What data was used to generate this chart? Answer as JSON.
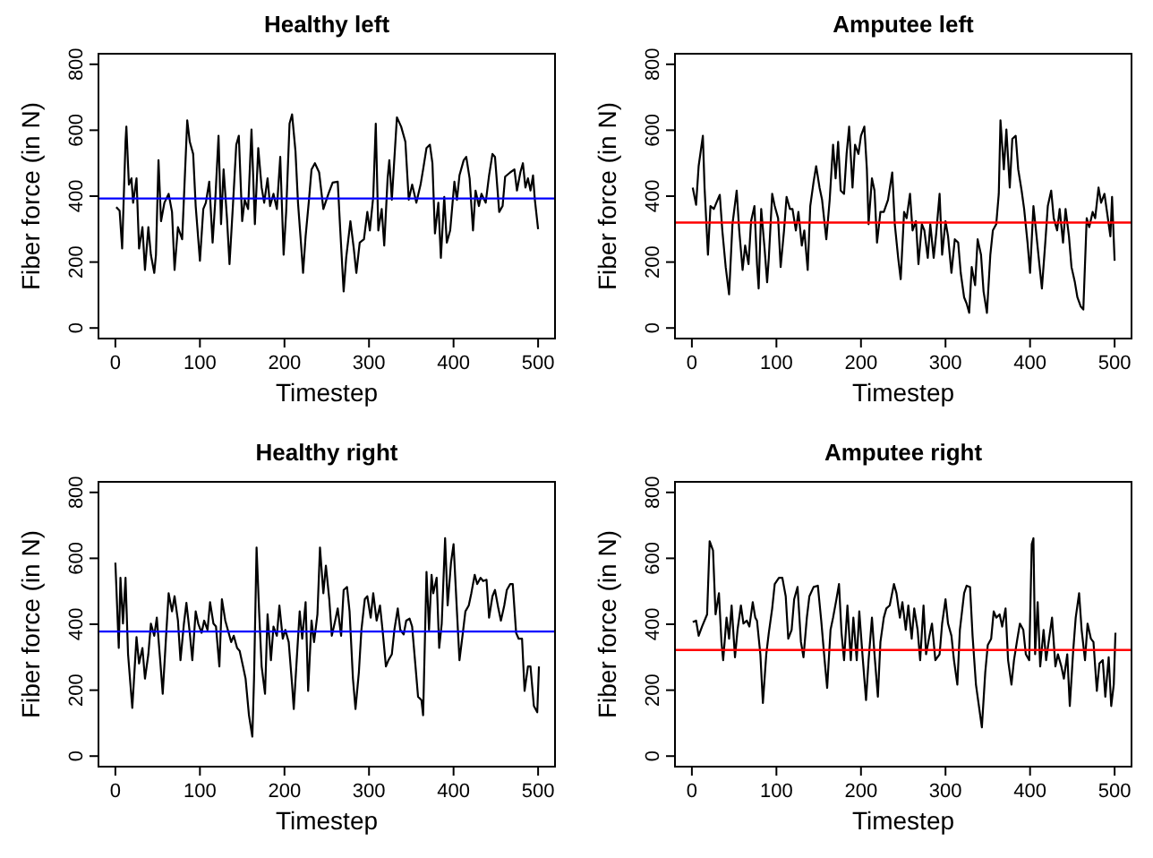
{
  "chart_data": [
    {
      "type": "line",
      "title": "Healthy left",
      "xlabel": "Timestep",
      "ylabel": "Fiber force (in N)",
      "xlim": [
        -20,
        520
      ],
      "ylim": [
        -32,
        832
      ],
      "xticks": [
        0,
        100,
        200,
        300,
        400,
        500
      ],
      "yticks": [
        0,
        200,
        400,
        600,
        800
      ],
      "x": [
        1,
        5,
        8,
        12,
        13,
        16,
        19,
        21,
        25,
        28,
        32,
        35,
        39,
        42,
        46,
        48,
        51,
        54,
        58,
        63,
        67,
        70,
        74,
        79,
        85,
        88,
        92,
        95,
        100,
        104,
        107,
        111,
        115,
        118,
        122,
        125,
        128,
        132,
        135,
        139,
        143,
        146,
        150,
        153,
        157,
        161,
        165,
        169,
        173,
        176,
        180,
        183,
        187,
        191,
        195,
        199,
        202,
        206,
        209,
        213,
        216,
        220,
        222,
        225,
        229,
        232,
        236,
        241,
        246,
        252,
        257,
        263,
        266,
        270,
        273,
        278,
        282,
        285,
        289,
        294,
        298,
        301,
        305,
        308,
        311,
        315,
        318,
        322,
        324,
        327,
        333,
        338,
        343,
        347,
        351,
        356,
        361,
        364,
        368,
        372,
        375,
        378,
        382,
        385,
        389,
        392,
        396,
        401,
        404,
        407,
        412,
        415,
        419,
        423,
        426,
        430,
        433,
        438,
        442,
        446,
        449,
        454,
        458,
        461,
        467,
        472,
        475,
        479,
        482,
        485,
        488,
        491,
        494,
        496,
        500
      ],
      "series": [
        {
          "color": "#000000",
          "values": [
            367,
            356,
            241,
            565,
            611,
            435,
            454,
            380,
            454,
            241,
            306,
            176,
            306,
            222,
            167,
            222,
            509,
            324,
            380,
            407,
            352,
            176,
            306,
            269,
            630,
            565,
            528,
            370,
            204,
            361,
            380,
            444,
            259,
            380,
            583,
            315,
            481,
            333,
            194,
            370,
            556,
            583,
            324,
            389,
            361,
            602,
            315,
            546,
            426,
            380,
            454,
            370,
            407,
            361,
            519,
            222,
            352,
            620,
            648,
            537,
            380,
            241,
            167,
            278,
            389,
            481,
            500,
            472,
            361,
            407,
            441,
            444,
            296,
            111,
            213,
            324,
            241,
            167,
            259,
            269,
            352,
            296,
            398,
            620,
            296,
            361,
            250,
            454,
            509,
            389,
            639,
            611,
            565,
            389,
            435,
            380,
            435,
            481,
            546,
            556,
            500,
            287,
            380,
            213,
            398,
            259,
            296,
            444,
            389,
            463,
            509,
            519,
            454,
            296,
            417,
            370,
            407,
            380,
            463,
            528,
            519,
            352,
            370,
            459,
            472,
            481,
            417,
            472,
            500,
            426,
            454,
            417,
            463,
            393,
            300
          ]
        }
      ],
      "ref_lines": [
        {
          "axis": "y",
          "value": 393,
          "color": "#0000ff"
        }
      ]
    },
    {
      "type": "line",
      "title": "Amputee left",
      "xlabel": "Timestep",
      "ylabel": "Fiber force (in N)",
      "xlim": [
        -20,
        520
      ],
      "ylim": [
        -32,
        832
      ],
      "xticks": [
        0,
        100,
        200,
        300,
        400,
        500
      ],
      "yticks": [
        0,
        200,
        400,
        600,
        800
      ],
      "x": [
        1,
        5,
        8,
        13,
        15,
        19,
        22,
        26,
        29,
        33,
        36,
        40,
        44,
        48,
        53,
        56,
        60,
        63,
        67,
        70,
        74,
        77,
        79,
        82,
        86,
        89,
        91,
        95,
        98,
        102,
        105,
        109,
        112,
        116,
        119,
        123,
        126,
        130,
        133,
        137,
        140,
        144,
        147,
        151,
        154,
        159,
        163,
        167,
        170,
        173,
        176,
        180,
        183,
        186,
        190,
        193,
        197,
        200,
        204,
        207,
        209,
        213,
        216,
        219,
        223,
        227,
        232,
        237,
        240,
        244,
        247,
        251,
        254,
        258,
        261,
        265,
        268,
        272,
        275,
        279,
        282,
        286,
        289,
        293,
        296,
        300,
        303,
        307,
        311,
        315,
        318,
        322,
        325,
        328,
        331,
        335,
        338,
        342,
        345,
        349,
        353,
        356,
        360,
        363,
        365,
        369,
        372,
        376,
        379,
        383,
        386,
        390,
        393,
        397,
        400,
        404,
        407,
        411,
        414,
        418,
        421,
        425,
        428,
        432,
        435,
        439,
        442,
        446,
        449,
        453,
        456,
        460,
        463,
        467,
        470,
        474,
        477,
        481,
        484,
        488,
        491,
        495,
        497,
        500
      ],
      "series": [
        {
          "color": "#000000",
          "values": [
            426,
            374,
            491,
            583,
            426,
            222,
            370,
            361,
            380,
            404,
            296,
            185,
            102,
            315,
            417,
            296,
            176,
            250,
            194,
            324,
            370,
            194,
            120,
            361,
            241,
            139,
            213,
            407,
            370,
            333,
            185,
            296,
            398,
            361,
            361,
            296,
            352,
            250,
            296,
            176,
            370,
            444,
            491,
            426,
            389,
            269,
            389,
            556,
            454,
            565,
            417,
            407,
            528,
            611,
            426,
            556,
            528,
            583,
            611,
            481,
            315,
            454,
            417,
            259,
            352,
            352,
            389,
            472,
            315,
            213,
            148,
            352,
            333,
            407,
            296,
            324,
            194,
            315,
            296,
            213,
            315,
            213,
            287,
            407,
            222,
            324,
            278,
            167,
            269,
            259,
            167,
            93,
            74,
            46,
            185,
            130,
            269,
            222,
            111,
            46,
            222,
            296,
            315,
            407,
            630,
            481,
            602,
            426,
            574,
            583,
            481,
            417,
            361,
            259,
            167,
            370,
            296,
            194,
            120,
            259,
            370,
            417,
            333,
            296,
            361,
            259,
            361,
            278,
            185,
            139,
            93,
            65,
            56,
            333,
            306,
            352,
            333,
            426,
            380,
            407,
            352,
            278,
            398,
            204
          ]
        }
      ],
      "ref_lines": [
        {
          "axis": "y",
          "value": 320,
          "color": "#ff0000"
        }
      ]
    },
    {
      "type": "line",
      "title": "Healthy right",
      "xlabel": "Timestep",
      "ylabel": "Fiber force (in N)",
      "xlim": [
        -20,
        520
      ],
      "ylim": [
        -32,
        832
      ],
      "xticks": [
        0,
        100,
        200,
        300,
        400,
        500
      ],
      "yticks": [
        0,
        200,
        400,
        600,
        800
      ],
      "x": [
        0,
        4,
        6,
        9,
        12,
        15,
        20,
        25,
        28,
        32,
        35,
        39,
        42,
        46,
        49,
        53,
        56,
        60,
        63,
        67,
        70,
        74,
        77,
        81,
        84,
        88,
        91,
        95,
        98,
        102,
        105,
        109,
        112,
        116,
        119,
        123,
        126,
        130,
        133,
        137,
        140,
        144,
        147,
        151,
        154,
        158,
        162,
        164,
        167,
        170,
        173,
        177,
        180,
        184,
        187,
        191,
        194,
        198,
        201,
        205,
        209,
        211,
        214,
        218,
        221,
        225,
        228,
        232,
        235,
        239,
        242,
        246,
        249,
        253,
        256,
        260,
        263,
        267,
        270,
        274,
        277,
        281,
        284,
        288,
        291,
        295,
        298,
        302,
        305,
        309,
        313,
        316,
        320,
        323,
        327,
        330,
        334,
        337,
        341,
        344,
        348,
        351,
        355,
        358,
        362,
        364,
        368,
        371,
        374,
        376,
        380,
        383,
        386,
        390,
        393,
        397,
        400,
        404,
        407,
        411,
        414,
        418,
        421,
        425,
        428,
        432,
        435,
        439,
        442,
        446,
        449,
        453,
        456,
        460,
        463,
        467,
        470,
        474,
        477,
        481,
        484,
        488,
        491,
        495,
        499,
        501
      ],
      "series": [
        {
          "color": "#000000",
          "values": [
            587,
            328,
            541,
            402,
            541,
            309,
            146,
            361,
            281,
            328,
            235,
            309,
            402,
            365,
            420,
            291,
            189,
            365,
            494,
            439,
            485,
            411,
            291,
            400,
            465,
            374,
            291,
            439,
            402,
            374,
            411,
            383,
            467,
            402,
            393,
            272,
            476,
            411,
            383,
            346,
            365,
            328,
            319,
            272,
            235,
            124,
            59,
            235,
            633,
            439,
            272,
            189,
            430,
            291,
            393,
            365,
            457,
            356,
            383,
            346,
            217,
            143,
            272,
            439,
            356,
            467,
            198,
            411,
            346,
            430,
            633,
            494,
            578,
            476,
            365,
            411,
            448,
            365,
            504,
            513,
            439,
            235,
            143,
            254,
            383,
            476,
            485,
            420,
            494,
            411,
            457,
            383,
            272,
            291,
            309,
            383,
            448,
            383,
            369,
            411,
            417,
            393,
            272,
            180,
            170,
            124,
            559,
            383,
            550,
            494,
            541,
            328,
            402,
            661,
            457,
            587,
            643,
            439,
            291,
            374,
            439,
            457,
            494,
            550,
            522,
            541,
            531,
            535,
            420,
            485,
            504,
            448,
            411,
            457,
            504,
            522,
            522,
            374,
            356,
            356,
            198,
            272,
            272,
            152,
            133,
            272
          ]
        }
      ],
      "ref_lines": [
        {
          "axis": "y",
          "value": 378,
          "color": "#0000ff"
        }
      ]
    },
    {
      "type": "line",
      "title": "Amputee right",
      "xlabel": "Timestep",
      "ylabel": "Fiber force (in N)",
      "xlim": [
        -20,
        520
      ],
      "ylim": [
        -32,
        832
      ],
      "xticks": [
        0,
        100,
        200,
        300,
        400,
        500
      ],
      "yticks": [
        0,
        200,
        400,
        600,
        800
      ],
      "x": [
        1,
        5,
        8,
        12,
        18,
        21,
        25,
        28,
        32,
        35,
        37,
        41,
        44,
        47,
        51,
        54,
        58,
        61,
        65,
        68,
        72,
        75,
        77,
        81,
        84,
        88,
        91,
        95,
        98,
        103,
        107,
        111,
        114,
        118,
        121,
        125,
        129,
        132,
        136,
        139,
        144,
        149,
        153,
        157,
        160,
        164,
        167,
        171,
        174,
        177,
        180,
        184,
        188,
        191,
        195,
        198,
        202,
        206,
        209,
        213,
        216,
        220,
        223,
        227,
        230,
        234,
        239,
        242,
        246,
        249,
        253,
        256,
        260,
        263,
        267,
        270,
        274,
        277,
        281,
        284,
        288,
        293,
        296,
        300,
        303,
        307,
        310,
        314,
        317,
        322,
        325,
        329,
        332,
        336,
        339,
        343,
        347,
        350,
        354,
        357,
        360,
        364,
        367,
        371,
        374,
        378,
        381,
        385,
        388,
        392,
        395,
        399,
        402,
        404,
        406,
        409,
        412,
        416,
        419,
        423,
        426,
        430,
        433,
        437,
        440,
        444,
        447,
        451,
        454,
        458,
        461,
        465,
        468,
        472,
        475,
        479,
        482,
        486,
        489,
        493,
        496,
        499,
        501
      ],
      "series": [
        {
          "color": "#000000",
          "values": [
            407,
            411,
            365,
            393,
            430,
            652,
            624,
            430,
            494,
            346,
            291,
            420,
            356,
            457,
            300,
            383,
            457,
            402,
            411,
            393,
            467,
            420,
            411,
            309,
            161,
            309,
            374,
            448,
            522,
            541,
            541,
            485,
            356,
            383,
            476,
            513,
            346,
            300,
            420,
            485,
            513,
            517,
            411,
            291,
            207,
            383,
            420,
            476,
            522,
            374,
            291,
            457,
            291,
            420,
            291,
            439,
            300,
            170,
            291,
            420,
            309,
            180,
            346,
            420,
            448,
            457,
            522,
            494,
            420,
            467,
            383,
            457,
            356,
            448,
            383,
            291,
            457,
            309,
            365,
            402,
            291,
            309,
            402,
            476,
            402,
            365,
            291,
            217,
            383,
            494,
            517,
            513,
            365,
            217,
            161,
            87,
            254,
            337,
            356,
            439,
            420,
            430,
            393,
            448,
            291,
            217,
            291,
            356,
            402,
            383,
            309,
            291,
            643,
            661,
            309,
            467,
            272,
            383,
            291,
            365,
            420,
            272,
            309,
            272,
            235,
            309,
            152,
            319,
            420,
            494,
            383,
            291,
            402,
            356,
            346,
            198,
            281,
            291,
            180,
            300,
            152,
            217,
            374
          ]
        }
      ],
      "ref_lines": [
        {
          "axis": "y",
          "value": 322,
          "color": "#ff0000"
        }
      ]
    }
  ]
}
